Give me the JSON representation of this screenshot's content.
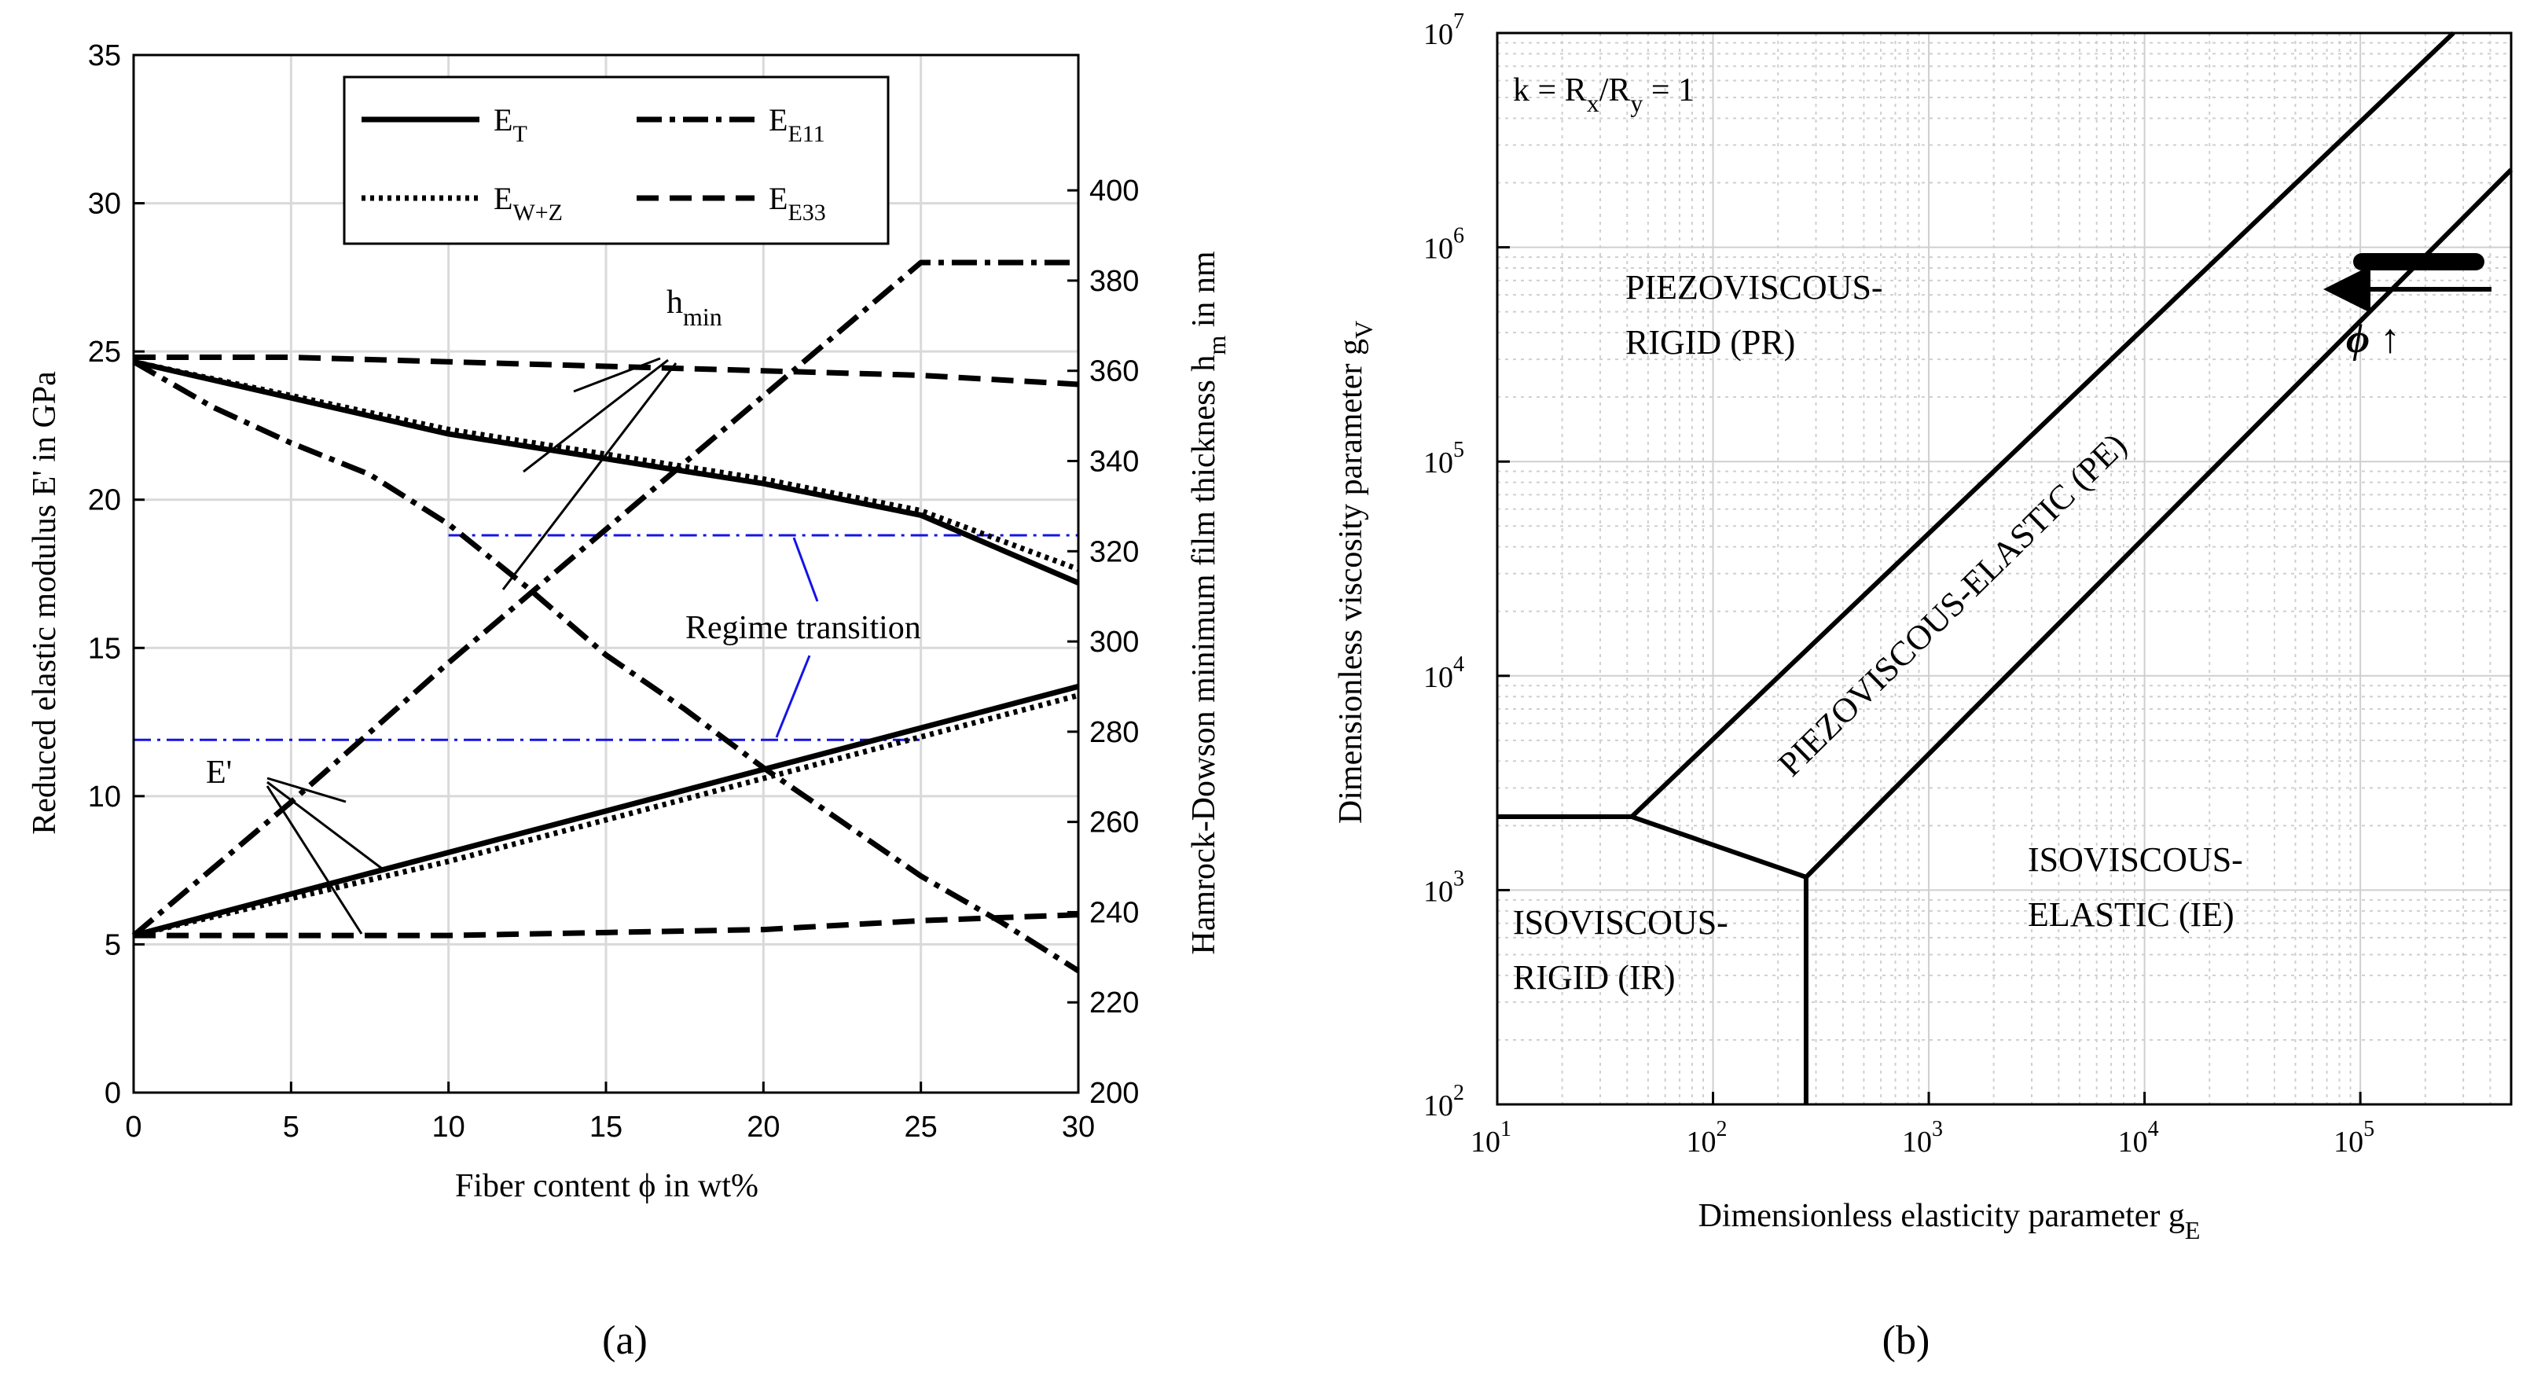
{
  "chart_data": [
    {
      "id": "a",
      "type": "line",
      "caption": "(a)",
      "xlabel": "Fiber content ϕ in wt%",
      "ylabel_left": "Reduced elastic modulus E' in GPa",
      "ylabel_right": "Hamrock-Dowson minimum film thickness h",
      "ylabel_right_sub": "m",
      "ylabel_right_suffix": " in nm",
      "xlim": [
        0,
        30
      ],
      "ylim_left": [
        0,
        35
      ],
      "ylim_right": [
        200,
        430
      ],
      "x_ticks": [
        0,
        5,
        10,
        15,
        20,
        25,
        30
      ],
      "y_ticks_left": [
        0,
        5,
        10,
        15,
        20,
        25,
        30,
        35
      ],
      "y_ticks_right": [
        200,
        220,
        240,
        260,
        280,
        300,
        320,
        340,
        360,
        380,
        400
      ],
      "grid": true,
      "legend": {
        "position": "top-center",
        "entries": [
          {
            "label": "E",
            "sub": "T",
            "style": "solid"
          },
          {
            "label": "E",
            "sub": "E11",
            "style": "dashdot"
          },
          {
            "label": "E",
            "sub": "W+Z",
            "style": "dotted"
          },
          {
            "label": "E",
            "sub": "E33",
            "style": "dashed"
          }
        ]
      },
      "series": [
        {
          "name": "E' E_T",
          "axis": "left",
          "style": "solid",
          "x": [
            0,
            10,
            20,
            30
          ],
          "y": [
            5.3,
            8.1,
            10.9,
            13.7
          ]
        },
        {
          "name": "E' E_W+Z",
          "axis": "left",
          "style": "dotted",
          "x": [
            0,
            10,
            20,
            30
          ],
          "y": [
            5.3,
            7.8,
            10.6,
            13.4
          ]
        },
        {
          "name": "E' E_E11",
          "axis": "left",
          "style": "dashdot",
          "x": [
            0,
            5,
            10,
            15,
            20,
            25,
            30
          ],
          "y": [
            5.3,
            9.8,
            14.5,
            19.0,
            23.5,
            28.0,
            28.0
          ]
        },
        {
          "name": "E' E_E33",
          "axis": "left",
          "style": "dashed",
          "x": [
            0,
            5,
            10,
            15,
            20,
            25,
            30
          ],
          "y": [
            5.3,
            5.3,
            5.3,
            5.4,
            5.5,
            5.8,
            6.0
          ]
        },
        {
          "name": "h_min E_T",
          "axis": "right",
          "style": "solid",
          "x": [
            0,
            10,
            20,
            25,
            30
          ],
          "y": [
            362,
            346,
            335,
            328,
            313
          ]
        },
        {
          "name": "h_min E_W+Z",
          "axis": "right",
          "style": "dotted",
          "x": [
            0,
            10,
            20,
            25,
            30
          ],
          "y": [
            362,
            347,
            336,
            329,
            316
          ]
        },
        {
          "name": "h_min E_E11",
          "axis": "right",
          "style": "dashdot",
          "x": [
            0,
            2.5,
            5,
            7.5,
            10,
            12.5,
            15,
            17.5,
            20,
            22.5,
            25,
            27.5,
            30
          ],
          "y": [
            362,
            352,
            344,
            337,
            326,
            312,
            297,
            285,
            272,
            260,
            248,
            238,
            227
          ]
        },
        {
          "name": "h_min E_E33",
          "axis": "right",
          "style": "dashed",
          "x": [
            0,
            5,
            10,
            15,
            20,
            25,
            30
          ],
          "y": [
            363,
            363,
            362,
            361,
            360,
            359,
            357
          ]
        }
      ],
      "transition_lines": [
        {
          "axis": "left",
          "y": 18.8,
          "x": [
            10,
            30
          ]
        },
        {
          "axis": "left",
          "y": 11.9,
          "x": [
            0,
            25
          ]
        }
      ],
      "annotations": {
        "hmin_label": "h",
        "hmin_sub": "min",
        "eprime_label": "E'",
        "regime_label": "Regime transition"
      },
      "colors": {
        "line": "#000000",
        "transition": "#1414e6",
        "grid": "#d9d9d9"
      }
    },
    {
      "id": "b",
      "type": "line",
      "caption": "(b)",
      "xlabel": "Dimensionless elasticity parameter g",
      "xlabel_sub": "E",
      "ylabel": "Dimensionless viscosity parameter g",
      "ylabel_sub": "V",
      "xscale": "log",
      "yscale": "log",
      "xlim": [
        10,
        500000
      ],
      "ylim": [
        100,
        10000000
      ],
      "x_tick_exponents": [
        1,
        2,
        3,
        4,
        5
      ],
      "y_tick_exponents": [
        2,
        3,
        4,
        5,
        6,
        7
      ],
      "tick_base": "10",
      "grid": true,
      "corner_label": {
        "text": "k = R",
        "sub1": "x",
        "mid": "/R",
        "sub2": "y",
        "tail": " = 1"
      },
      "boundaries": [
        {
          "name": "IR-PR boundary",
          "x": [
            10,
            42
          ],
          "y": [
            2200,
            2200
          ]
        },
        {
          "name": "IR-PE boundary",
          "x": [
            42,
            270
          ],
          "y": [
            2200,
            1150
          ]
        },
        {
          "name": "IR-IE boundary",
          "x": [
            270,
            270
          ],
          "y": [
            100,
            1150
          ]
        },
        {
          "name": "PR-PE boundary",
          "x": [
            42,
            270000
          ],
          "y": [
            2200,
            10000000
          ]
        },
        {
          "name": "PE-IE boundary",
          "x": [
            270,
            500000
          ],
          "y": [
            1150,
            2300000
          ]
        }
      ],
      "regions": [
        {
          "line1": "PIEZOVISCOUS-",
          "line2": "RIGID (PR)"
        },
        {
          "line1": "PIEZOVISCOUS-ELASTIC (PE)"
        },
        {
          "line1": "ISOVISCOUS-",
          "line2": "ELASTIC (IE)"
        },
        {
          "line1": "ISOVISCOUS-",
          "line2": "RIGID (IR)"
        }
      ],
      "phi_annotation": {
        "text": "ϕ ↑"
      },
      "colors": {
        "line": "#000000",
        "grid": "#cfcfcf"
      }
    }
  ]
}
